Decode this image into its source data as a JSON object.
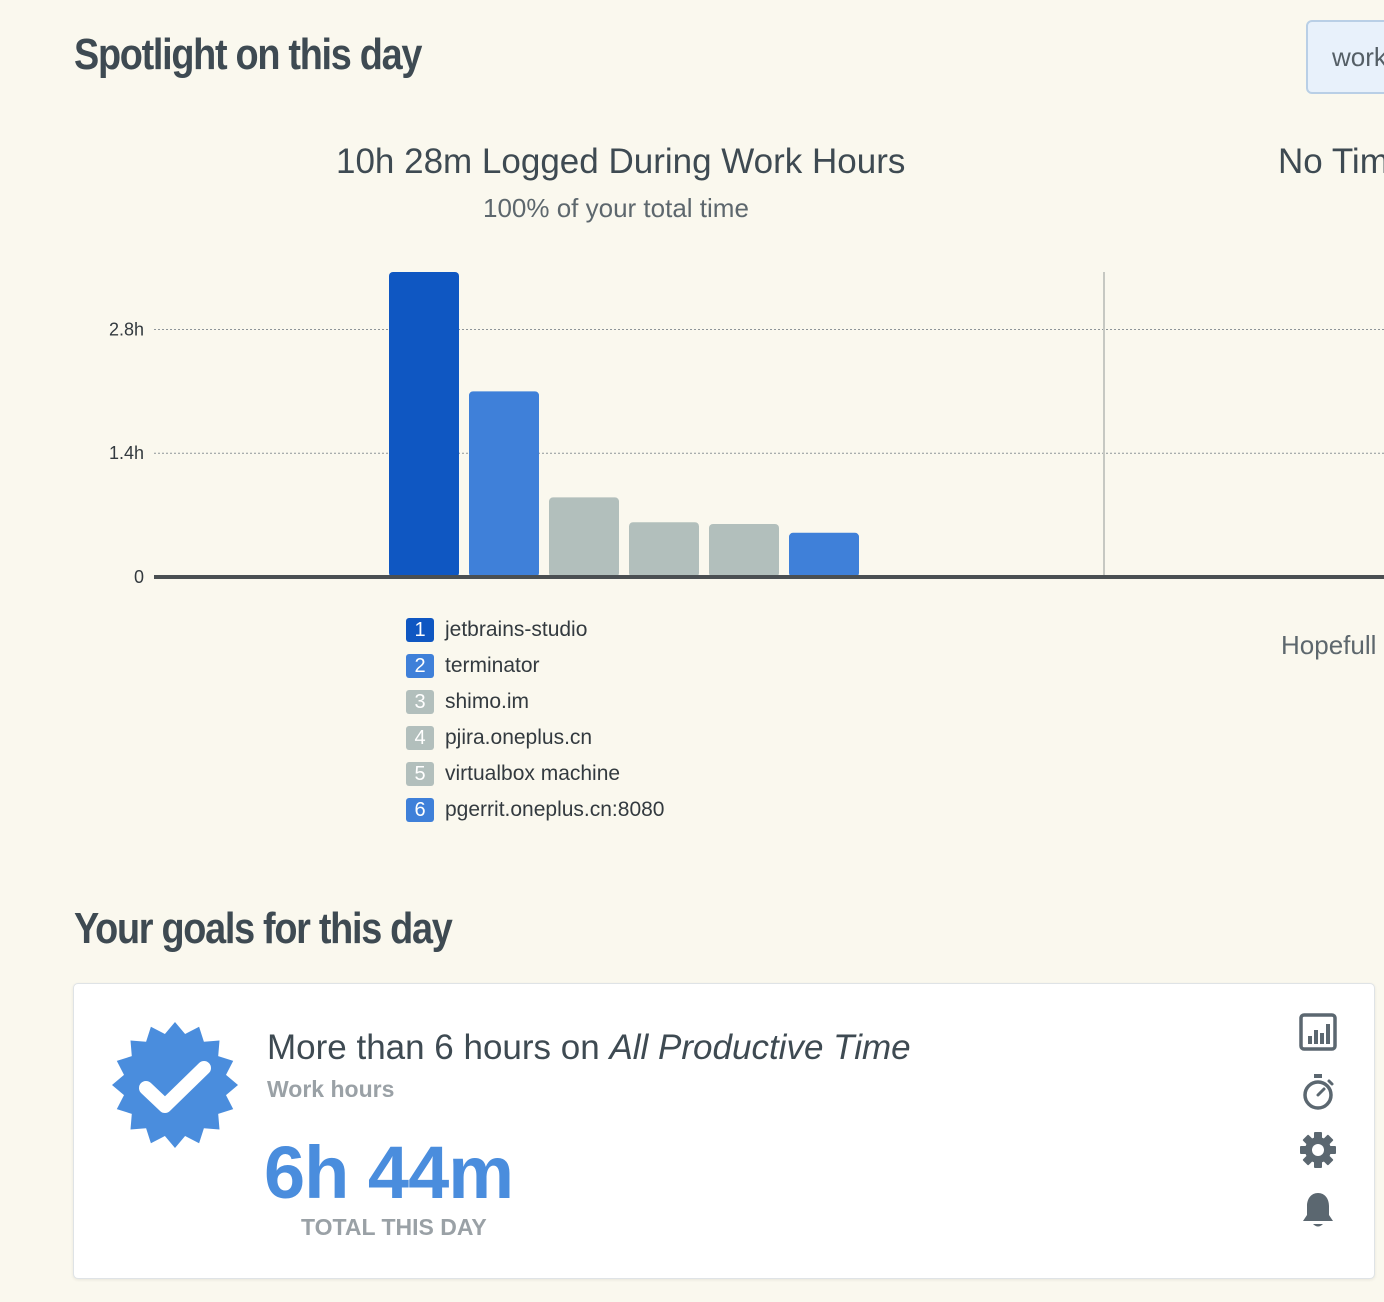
{
  "spotlight": {
    "title": "Spotlight on this day",
    "filter_label": "work"
  },
  "chart_header": {
    "title": "10h 28m Logged During Work Hours",
    "subtitle": "100% of your total time",
    "side_title": "No Tim",
    "side_note": "Hopefull"
  },
  "chart_data": {
    "type": "bar",
    "categories": [
      "jetbrains-studio",
      "terminator",
      "shimo.im",
      "pjira.oneplus.cn",
      "virtualbox machine",
      "pgerrit.oneplus.cn:8080"
    ],
    "values": [
      3.45,
      2.1,
      0.9,
      0.62,
      0.6,
      0.5
    ],
    "colors": [
      "#0f57c2",
      "#3f80d9",
      "#b2bfbc",
      "#b2bfbc",
      "#b2bfbc",
      "#3f80d9"
    ],
    "legend_numbers": [
      "1",
      "2",
      "3",
      "4",
      "5",
      "6"
    ],
    "y_ticks": [
      0,
      1.4,
      2.8
    ],
    "y_tick_labels": [
      "0",
      "1.4h",
      "2.8h"
    ],
    "ylim": [
      0,
      3.45
    ],
    "grid": true,
    "legend": "below"
  },
  "goals": {
    "title": "Your goals for this day",
    "card": {
      "title_prefix": "More than 6 hours on ",
      "title_emphasis": "All Productive Time",
      "subtitle": "Work hours",
      "total": "6h 44m",
      "total_label": "TOTAL THIS DAY",
      "badge_icon": "verified-check-badge-icon",
      "actions": [
        "bar-chart-icon",
        "stopwatch-icon",
        "gear-icon",
        "bell-icon"
      ]
    }
  },
  "colors": {
    "background": "#faf8ee",
    "accent": "#4a8ddd",
    "primary_bar": "#0f57c2",
    "secondary_bar": "#3f80d9",
    "neutral_bar": "#b2bfbc"
  }
}
